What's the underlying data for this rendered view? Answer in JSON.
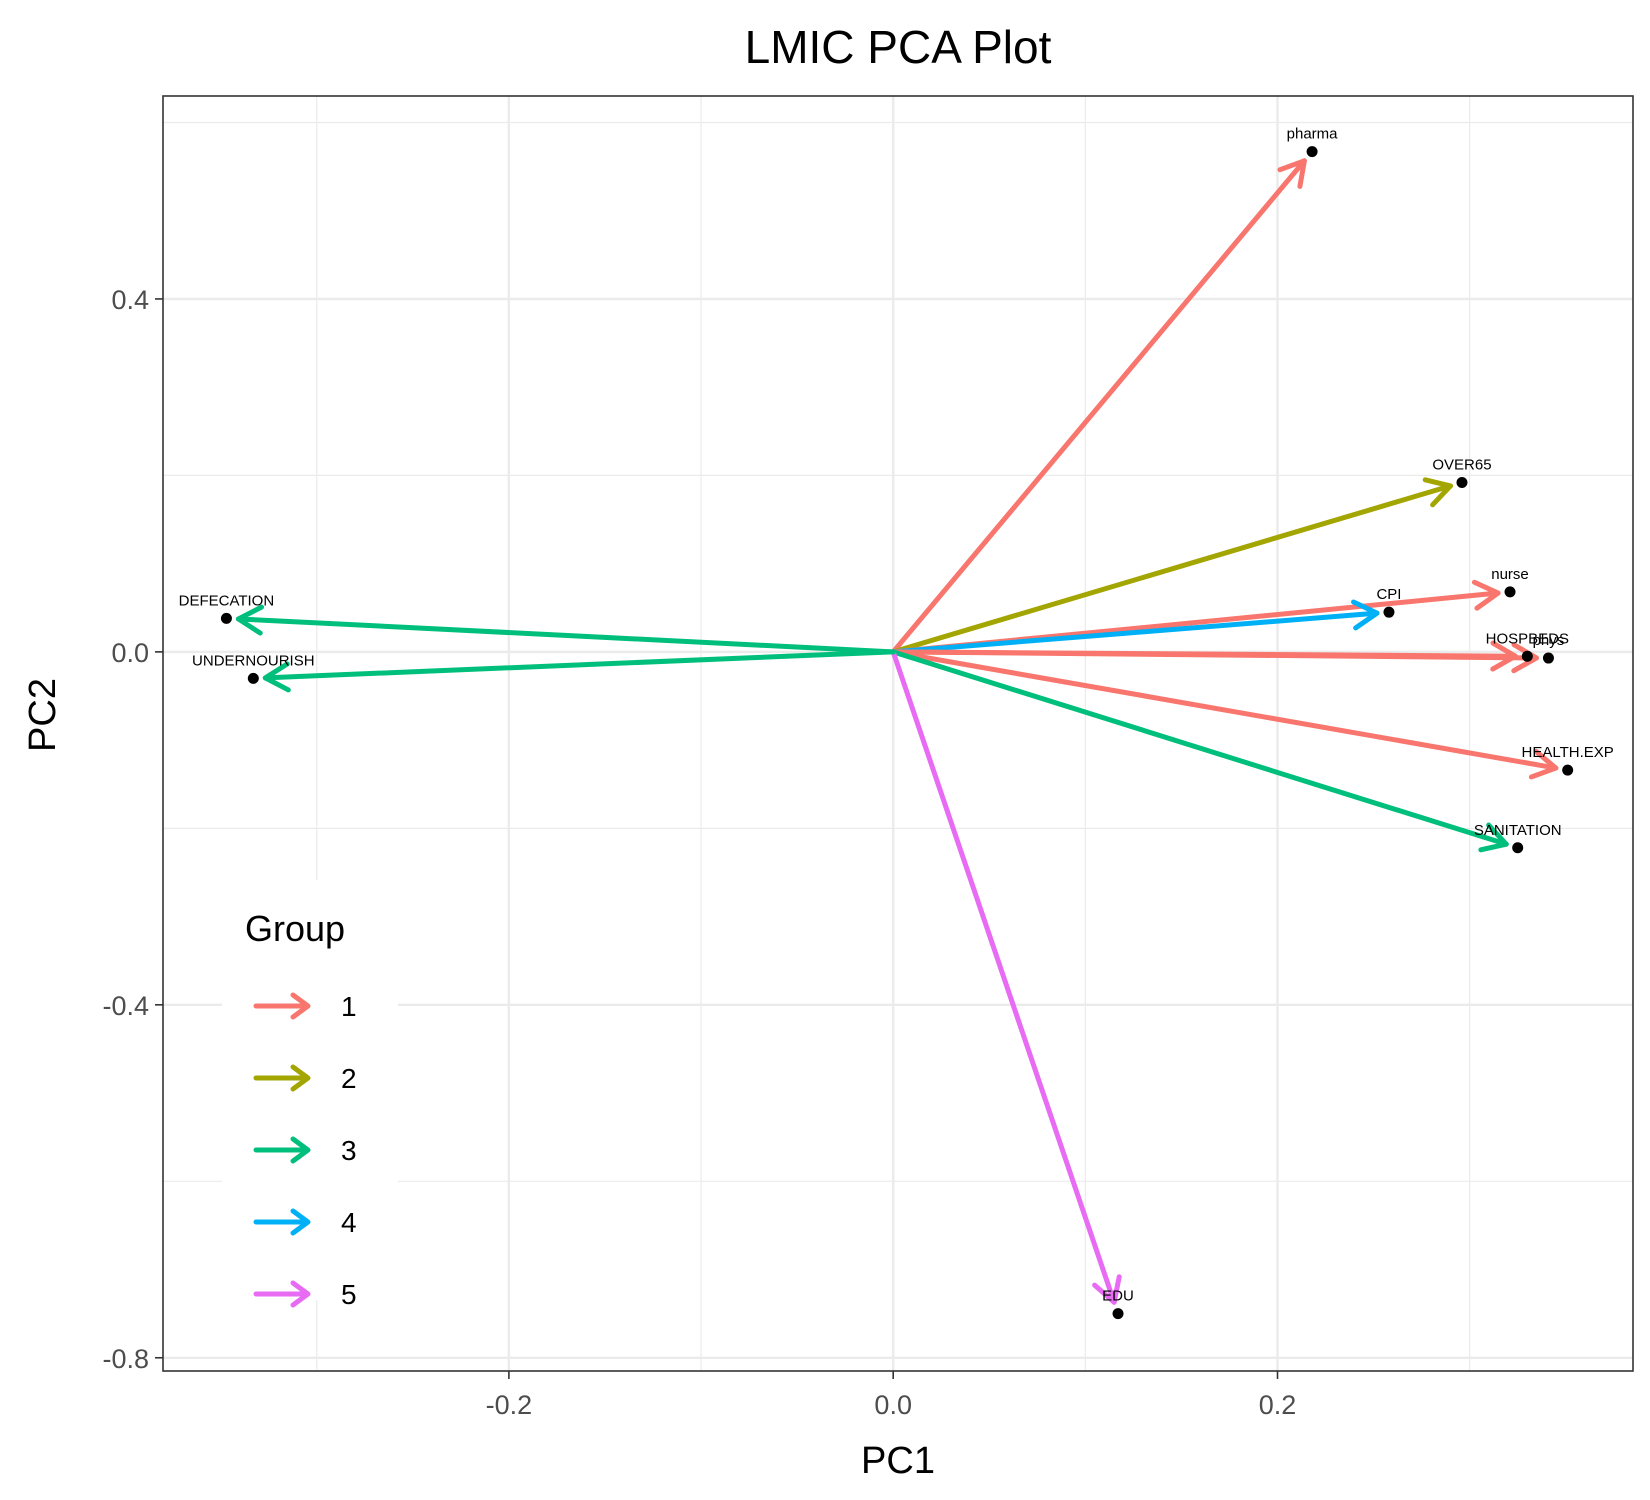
{
  "chart_data": {
    "type": "biplot",
    "title": "LMIC PCA Plot",
    "xlabel": "PC1",
    "ylabel": "PC2",
    "xlim": [
      -0.38,
      0.385
    ],
    "ylim": [
      -0.815,
      0.63
    ],
    "x_ticks": [
      -0.2,
      0.0,
      0.2
    ],
    "x_tick_labels": [
      "-0.2",
      "0.0",
      "0.2"
    ],
    "y_ticks": [
      0.4,
      0.0,
      -0.4,
      -0.8
    ],
    "y_tick_labels": [
      "0.4",
      "0.0",
      "-0.4",
      "-0.8"
    ],
    "grid": true,
    "legend": {
      "title": "Group",
      "position": "bottom-left-inside",
      "entries": [
        {
          "label": "1",
          "color": "#F8766D"
        },
        {
          "label": "2",
          "color": "#A3A500"
        },
        {
          "label": "3",
          "color": "#00BF7D"
        },
        {
          "label": "4",
          "color": "#00B0F6"
        },
        {
          "label": "5",
          "color": "#E76BF3"
        }
      ]
    },
    "vectors": [
      {
        "label": "pharma",
        "x": 0.218,
        "y": 0.567,
        "group": "1"
      },
      {
        "label": "OVER65",
        "x": 0.296,
        "y": 0.192,
        "group": "2"
      },
      {
        "label": "nurse",
        "x": 0.321,
        "y": 0.068,
        "group": "1"
      },
      {
        "label": "CPI",
        "x": 0.258,
        "y": 0.045,
        "group": "4"
      },
      {
        "label": "phys",
        "x": 0.341,
        "y": -0.007,
        "group": "1"
      },
      {
        "label": "HOSPBEDS",
        "x": 0.33,
        "y": -0.005,
        "group": "1"
      },
      {
        "label": "HEALTH.EXP",
        "x": 0.351,
        "y": -0.134,
        "group": "1"
      },
      {
        "label": "SANITATION",
        "x": 0.325,
        "y": -0.222,
        "group": "3"
      },
      {
        "label": "EDU",
        "x": 0.117,
        "y": -0.75,
        "group": "5"
      },
      {
        "label": "DEFECATION",
        "x": -0.347,
        "y": 0.038,
        "group": "3"
      },
      {
        "label": "UNDERNOURISH",
        "x": -0.333,
        "y": -0.03,
        "group": "3"
      }
    ]
  }
}
